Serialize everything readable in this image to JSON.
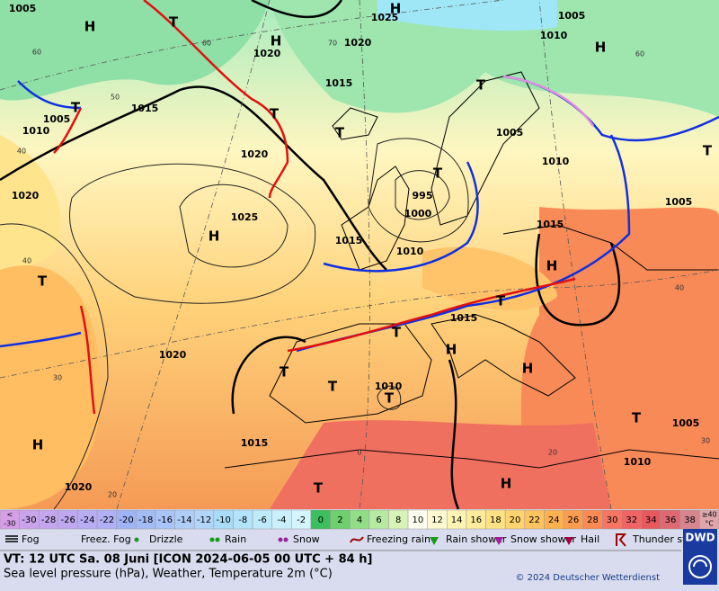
{
  "map": {
    "pressure_labels": [
      "1005",
      "1025",
      "1005",
      "1010",
      "1020",
      "1020",
      "1015",
      "1015",
      "1005",
      "1010",
      "1020",
      "1005",
      "1010",
      "1020",
      "995",
      "1000",
      "1025",
      "1015",
      "1015",
      "1010",
      "1005",
      "1015",
      "1020",
      "1010",
      "1015",
      "1005",
      "1010",
      "1020"
    ],
    "centers": [
      "H",
      "H",
      "H",
      "H",
      "T",
      "T",
      "T",
      "T",
      "T",
      "H",
      "T",
      "H",
      "T",
      "T",
      "H",
      "T",
      "T",
      "H",
      "T",
      "T",
      "H",
      "T",
      "H",
      "T",
      "T"
    ],
    "temperature_labels": [
      "60",
      "50",
      "40",
      "60",
      "40",
      "30",
      "20",
      "40",
      "20",
      "0",
      "30",
      "60",
      "70"
    ]
  },
  "scale": {
    "low": {
      "top": "<",
      "bottom": "-30",
      "color": "#d59ee6"
    },
    "steps": [
      {
        "label": "-30",
        "color": "#c9a3ec"
      },
      {
        "label": "-28",
        "color": "#c4a6ee"
      },
      {
        "label": "-26",
        "color": "#bea9f0"
      },
      {
        "label": "-24",
        "color": "#b8acf2"
      },
      {
        "label": "-22",
        "color": "#b0b0f4"
      },
      {
        "label": "-20",
        "color": "#9fb4f4"
      },
      {
        "label": "-18",
        "color": "#a3bcf6"
      },
      {
        "label": "-16",
        "color": "#a8c4f8"
      },
      {
        "label": "-14",
        "color": "#aecdf9"
      },
      {
        "label": "-12",
        "color": "#b2d5fa"
      },
      {
        "label": "-10",
        "color": "#a9dcf8"
      },
      {
        "label": "-8",
        "color": "#b4e4fb"
      },
      {
        "label": "-6",
        "color": "#bfeafc"
      },
      {
        "label": "-4",
        "color": "#caf0fd"
      },
      {
        "label": "-2",
        "color": "#d4f5fe"
      },
      {
        "label": "0",
        "color": "#3cbf5c"
      },
      {
        "label": "2",
        "color": "#6dcf6d"
      },
      {
        "label": "4",
        "color": "#92dd88"
      },
      {
        "label": "6",
        "color": "#b6e9a2"
      },
      {
        "label": "8",
        "color": "#d7f3b8"
      },
      {
        "label": "10",
        "color": "#fffff0"
      },
      {
        "label": "12",
        "color": "#fffad2"
      },
      {
        "label": "14",
        "color": "#fff4b4"
      },
      {
        "label": "16",
        "color": "#ffec9c"
      },
      {
        "label": "18",
        "color": "#ffe285"
      },
      {
        "label": "20",
        "color": "#ffd470"
      },
      {
        "label": "22",
        "color": "#ffc45f"
      },
      {
        "label": "24",
        "color": "#ffb150"
      },
      {
        "label": "26",
        "color": "#ff9d4e"
      },
      {
        "label": "28",
        "color": "#fb8a55"
      },
      {
        "label": "30",
        "color": "#f67563"
      },
      {
        "label": "32",
        "color": "#ef6464"
      },
      {
        "label": "34",
        "color": "#e65a5e"
      },
      {
        "label": "36",
        "color": "#dd6a72"
      },
      {
        "label": "38",
        "color": "#d6868e"
      }
    ],
    "high": {
      "top": "≥40",
      "bottom": "°C",
      "color": "#dfa6ac"
    }
  },
  "legend": [
    "Fog",
    "Freez. Fog",
    "Drizzle",
    "Rain",
    "Snow",
    "Freezing rain",
    "Rain shower",
    "Snow shower",
    "Hail",
    "Thunder storm"
  ],
  "footer": {
    "valid_time": "VT: 12 UTC Sa.  08 Juni [ICON 2024-06-05  00 UTC + 84 h]",
    "description": "Sea level pressure (hPa), Weather, Temperature 2m (°C)",
    "copyright": "© 2024 Deutscher Wetterdienst",
    "logo": "DWD"
  }
}
